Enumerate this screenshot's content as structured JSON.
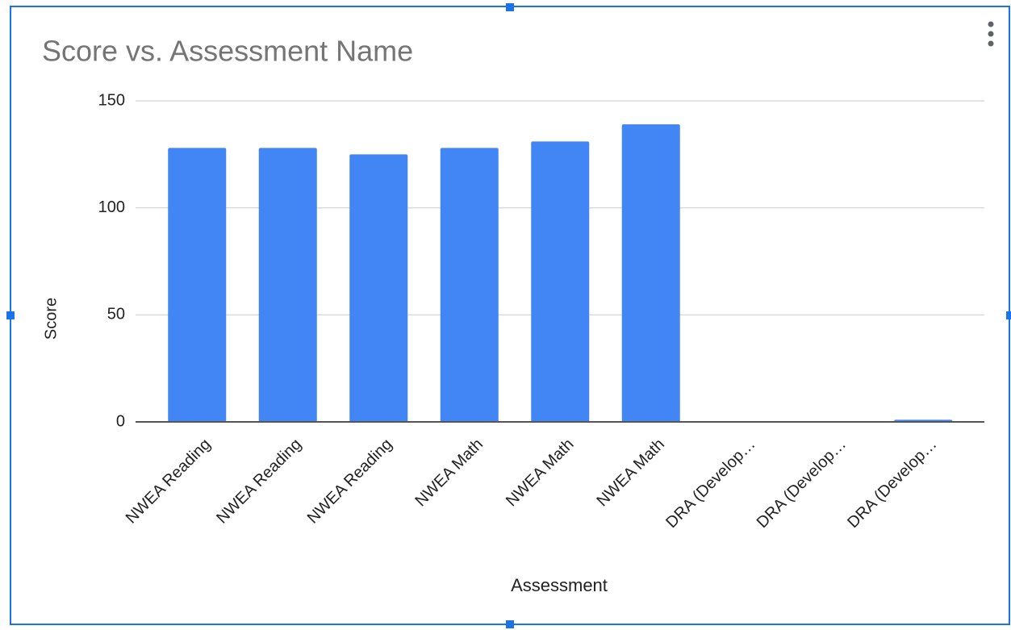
{
  "chart_data": {
    "type": "bar",
    "title": "Score vs. Assessment Name",
    "x_label": "Assessment",
    "y_label": "Score",
    "categories": [
      "NWEA Reading",
      "NWEA Reading",
      "NWEA Reading",
      "NWEA Math",
      "NWEA Math",
      "NWEA Math",
      "DRA (Develop…",
      "DRA (Develop…",
      "DRA (Develop…"
    ],
    "values": [
      128,
      128,
      125,
      128,
      131,
      139,
      0,
      0,
      1
    ],
    "color": "#4285f4",
    "ylim": [
      0,
      150
    ],
    "yticks": [
      0,
      50,
      100,
      150
    ],
    "grid": true
  }
}
